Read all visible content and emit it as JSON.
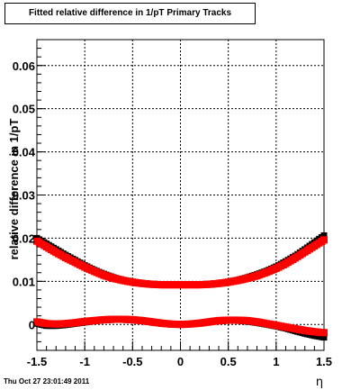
{
  "title": "Fitted relative difference in 1/pT  Primary Tracks",
  "timestamp": "Thu Oct 27 23:01:49 2011",
  "chart_data": {
    "type": "scatter",
    "xlabel": "η",
    "ylabel": "relative difference in 1/pT",
    "xlim": [
      -1.5,
      1.5
    ],
    "ylim": [
      -0.006,
      0.066
    ],
    "xticks": [
      -1.5,
      -1,
      -0.5,
      0,
      0.5,
      1,
      1.5
    ],
    "xtick_labels": [
      "-1.5",
      "-1",
      "-0.5",
      "0",
      "0.5",
      "1",
      "1.5"
    ],
    "yticks": [
      0,
      0.01,
      0.02,
      0.03,
      0.04,
      0.05,
      0.06
    ],
    "ytick_labels": [
      "0",
      "0.01",
      "0.02",
      "0.03",
      "0.04",
      "0.05",
      "0.06"
    ],
    "grid": true,
    "series": [
      {
        "color": "#000000",
        "marker": "square",
        "x": [
          -1.5,
          -1.4,
          -1.3,
          -1.2,
          -1.1,
          -1.0,
          -0.9,
          -0.8,
          -0.7,
          -0.6,
          -0.5,
          -0.4,
          -0.3,
          -0.2,
          -0.1,
          0.0,
          0.1,
          0.2,
          0.3,
          0.4,
          0.5,
          0.6,
          0.7,
          0.8,
          0.9,
          1.0,
          1.1,
          1.2,
          1.3,
          1.4,
          1.5
        ],
        "y": [
          0.02,
          0.0187,
          0.0174,
          0.0161,
          0.0149,
          0.0137,
          0.0126,
          0.0117,
          0.0109,
          0.0103,
          0.0099,
          0.0096,
          0.0094,
          0.0093,
          0.0093,
          0.0093,
          0.0093,
          0.0093,
          0.0094,
          0.0096,
          0.0099,
          0.0103,
          0.0109,
          0.0116,
          0.0124,
          0.0134,
          0.0146,
          0.0159,
          0.0174,
          0.019,
          0.0206
        ]
      },
      {
        "color": "#ff0000",
        "marker": "square",
        "x": [
          -1.5,
          -1.4,
          -1.3,
          -1.2,
          -1.1,
          -1.0,
          -0.9,
          -0.8,
          -0.7,
          -0.6,
          -0.5,
          -0.4,
          -0.3,
          -0.2,
          -0.1,
          0.0,
          0.1,
          0.2,
          0.3,
          0.4,
          0.5,
          0.6,
          0.7,
          0.8,
          0.9,
          1.0,
          1.1,
          1.2,
          1.3,
          1.4,
          1.5
        ],
        "y": [
          0.0193,
          0.018,
          0.0167,
          0.0155,
          0.0144,
          0.0133,
          0.0123,
          0.0114,
          0.0107,
          0.0102,
          0.0098,
          0.0095,
          0.0093,
          0.0092,
          0.0092,
          0.0092,
          0.0092,
          0.0092,
          0.0093,
          0.0095,
          0.0098,
          0.0102,
          0.0107,
          0.0113,
          0.0121,
          0.013,
          0.0141,
          0.0154,
          0.0168,
          0.0182,
          0.0196
        ]
      },
      {
        "color": "#000000",
        "marker": "square",
        "x": [
          -1.5,
          -1.4,
          -1.3,
          -1.2,
          -1.1,
          -1.0,
          -0.9,
          -0.8,
          -0.7,
          -0.6,
          -0.5,
          -0.4,
          -0.3,
          -0.2,
          -0.1,
          0.0,
          0.1,
          0.2,
          0.3,
          0.4,
          0.5,
          0.6,
          0.7,
          0.8,
          0.9,
          1.0,
          1.1,
          1.2,
          1.3,
          1.4,
          1.5
        ],
        "y": [
          0.0002,
          -0.0003,
          -0.0003,
          -0.0001,
          0.0002,
          0.0005,
          0.0008,
          0.001,
          0.0011,
          0.0011,
          0.001,
          0.0008,
          0.0005,
          0.0002,
          0.0,
          0.0,
          0.0001,
          0.0003,
          0.0006,
          0.0008,
          0.0009,
          0.0009,
          0.0007,
          0.0004,
          0.0,
          -0.0004,
          -0.0009,
          -0.0015,
          -0.0021,
          -0.0026,
          -0.003
        ]
      },
      {
        "color": "#ff0000",
        "marker": "square",
        "x": [
          -1.5,
          -1.4,
          -1.3,
          -1.2,
          -1.1,
          -1.0,
          -0.9,
          -0.8,
          -0.7,
          -0.6,
          -0.5,
          -0.4,
          -0.3,
          -0.2,
          -0.1,
          0.0,
          0.1,
          0.2,
          0.3,
          0.4,
          0.5,
          0.6,
          0.7,
          0.8,
          0.9,
          1.0,
          1.1,
          1.2,
          1.3,
          1.4,
          1.5
        ],
        "y": [
          0.0006,
          0.0002,
          0.0001,
          0.0002,
          0.0004,
          0.0007,
          0.0009,
          0.0011,
          0.0012,
          0.0012,
          0.0011,
          0.0009,
          0.0006,
          0.0003,
          0.0001,
          0.0,
          0.0001,
          0.0003,
          0.0006,
          0.0009,
          0.001,
          0.001,
          0.0009,
          0.0006,
          0.0002,
          -0.0002,
          -0.0006,
          -0.001,
          -0.0014,
          -0.0017,
          -0.0019
        ]
      }
    ]
  }
}
